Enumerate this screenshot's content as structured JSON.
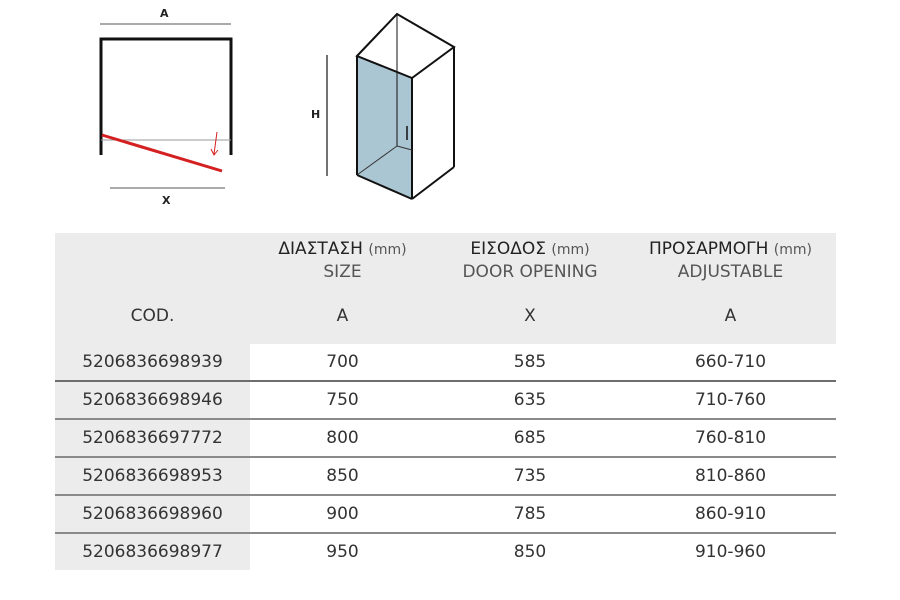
{
  "diagram": {
    "label_a": "A",
    "label_x": "X",
    "label_h": "H",
    "glass_color": "#a7c3d1",
    "door_color": "#d42020"
  },
  "table": {
    "headers": {
      "code": "COD.",
      "size": {
        "greek": "ΔΙΑΣΤΑΣΗ",
        "unit": "(mm)",
        "english": "SIZE",
        "letter": "A"
      },
      "opening": {
        "greek": "ΕΙΣΟΔΟΣ",
        "unit": "(mm)",
        "english": "DOOR OPENING",
        "letter": "X"
      },
      "adjustable": {
        "greek": "ΠΡΟΣΑΡΜΟΓΗ",
        "unit": "(mm)",
        "english": "ADJUSTABLE",
        "letter": "A"
      }
    },
    "rows": [
      {
        "code": "5206836698939",
        "size": "700",
        "opening": "585",
        "adjustable": "660-710"
      },
      {
        "code": "5206836698946",
        "size": "750",
        "opening": "635",
        "adjustable": "710-760"
      },
      {
        "code": "5206836697772",
        "size": "800",
        "opening": "685",
        "adjustable": "760-810"
      },
      {
        "code": "5206836698953",
        "size": "850",
        "opening": "735",
        "adjustable": "810-860"
      },
      {
        "code": "5206836698960",
        "size": "900",
        "opening": "785",
        "adjustable": "860-910"
      },
      {
        "code": "5206836698977",
        "size": "950",
        "opening": "850",
        "adjustable": "910-960"
      }
    ]
  }
}
